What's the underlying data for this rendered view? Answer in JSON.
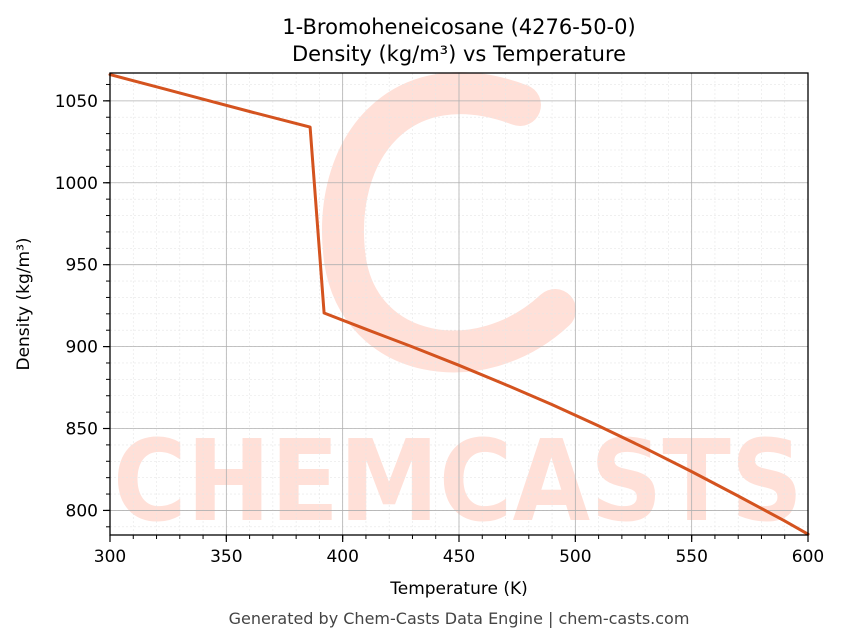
{
  "chart_data": {
    "type": "line",
    "title": "1-Bromoheneicosane (4276-50-0)",
    "subtitle": "Density (kg/m³) vs Temperature",
    "xlabel": "Temperature (K)",
    "ylabel": "Density (kg/m³)",
    "xlim": [
      300,
      600
    ],
    "ylim": [
      785,
      1067
    ],
    "x_ticks": [
      300,
      350,
      400,
      450,
      500,
      550,
      600
    ],
    "y_ticks": [
      800,
      850,
      900,
      950,
      1000,
      1050
    ],
    "grid": true,
    "series": [
      {
        "color": "#d4531f",
        "x": [
          300,
          320,
          340,
          360,
          386,
          392,
          410,
          430,
          450,
          470,
          490,
          510,
          530,
          550,
          570,
          590,
          600
        ],
        "y": [
          1066,
          1058.6,
          1051,
          1043.5,
          1034,
          920.5,
          910.6,
          899.8,
          888.6,
          876.8,
          864.6,
          851.6,
          838,
          823.7,
          808.8,
          793.6,
          785.5
        ]
      }
    ]
  },
  "watermark": "CHEMCASTS",
  "footer": "Generated by Chem-Casts Data Engine | chem-casts.com"
}
